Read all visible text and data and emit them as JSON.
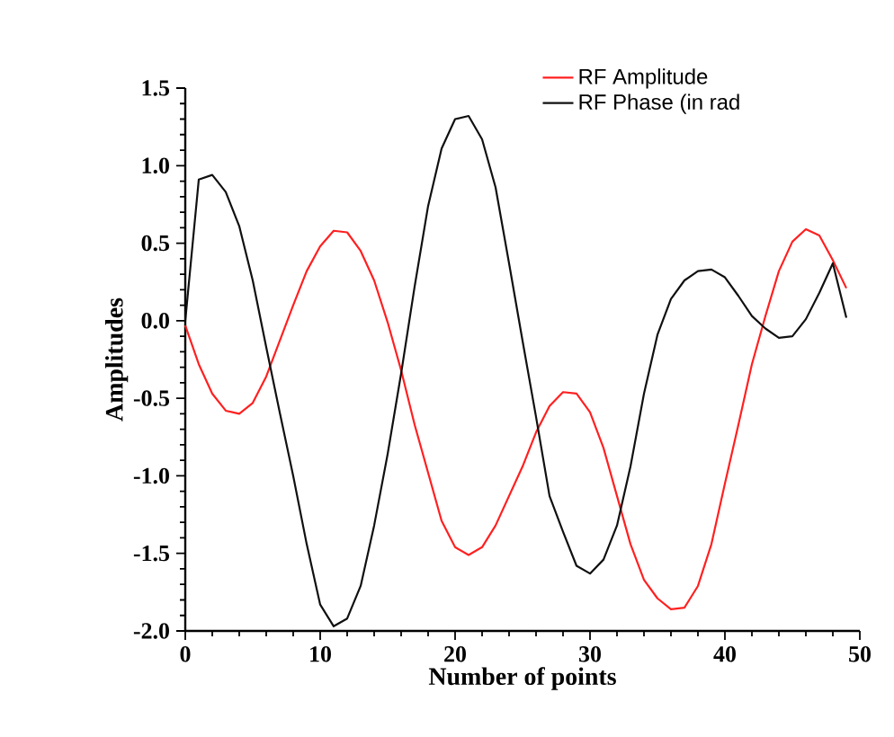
{
  "chart_data": {
    "type": "line",
    "xlabel": "Number of points",
    "ylabel": "Amplitudes",
    "x": [
      0,
      1,
      2,
      3,
      4,
      5,
      6,
      7,
      8,
      9,
      10,
      11,
      12,
      13,
      14,
      15,
      16,
      17,
      18,
      19,
      20,
      21,
      22,
      23,
      24,
      25,
      26,
      27,
      28,
      29,
      30,
      31,
      32,
      33,
      34,
      35,
      36,
      37,
      38,
      39,
      40,
      41,
      42,
      43,
      44,
      45,
      46,
      47,
      48,
      49
    ],
    "series": [
      {
        "name": "RF Amplitude",
        "color": "#ff2020",
        "values": [
          -0.03,
          -0.28,
          -0.47,
          -0.58,
          -0.6,
          -0.53,
          -0.36,
          -0.13,
          0.1,
          0.32,
          0.48,
          0.58,
          0.57,
          0.45,
          0.26,
          -0.01,
          -0.32,
          -0.67,
          -0.98,
          -1.29,
          -1.46,
          -1.51,
          -1.46,
          -1.32,
          -1.13,
          -0.94,
          -0.72,
          -0.55,
          -0.46,
          -0.47,
          -0.59,
          -0.82,
          -1.13,
          -1.44,
          -1.67,
          -1.79,
          -1.86,
          -1.85,
          -1.71,
          -1.44,
          -1.05,
          -0.67,
          -0.28,
          0.03,
          0.32,
          0.51,
          0.59,
          0.55,
          0.39,
          0.21
        ]
      },
      {
        "name": "RF Phase (in rad",
        "color": "#101010",
        "values": [
          0.0,
          0.91,
          0.94,
          0.83,
          0.61,
          0.26,
          -0.17,
          -0.59,
          -1.0,
          -1.44,
          -1.83,
          -1.97,
          -1.92,
          -1.71,
          -1.32,
          -0.86,
          -0.34,
          0.22,
          0.74,
          1.11,
          1.3,
          1.32,
          1.17,
          0.86,
          0.37,
          -0.13,
          -0.62,
          -1.13,
          -1.36,
          -1.58,
          -1.63,
          -1.54,
          -1.32,
          -0.94,
          -0.47,
          -0.09,
          0.14,
          0.26,
          0.32,
          0.33,
          0.28,
          0.16,
          0.03,
          -0.05,
          -0.11,
          -0.1,
          0.01,
          0.18,
          0.37,
          0.02
        ]
      }
    ],
    "xlim": [
      0,
      50
    ],
    "ylim": [
      -2.0,
      1.5
    ],
    "xticks": [
      0,
      10,
      20,
      30,
      40,
      50
    ],
    "yticks": [
      {
        "value": -2.0,
        "label": "-2.0"
      },
      {
        "value": -1.5,
        "label": "-1.5"
      },
      {
        "value": -1.0,
        "label": "-1.0"
      },
      {
        "value": -0.5,
        "label": "-0.5"
      },
      {
        "value": 0.0,
        "label": "0.0"
      },
      {
        "value": 0.5,
        "label": "0.5"
      },
      {
        "value": 1.0,
        "label": "1.0"
      },
      {
        "value": 1.5,
        "label": "1.5"
      }
    ],
    "grid": false,
    "legend": "top right",
    "marker": "none",
    "line_style": "solid"
  }
}
